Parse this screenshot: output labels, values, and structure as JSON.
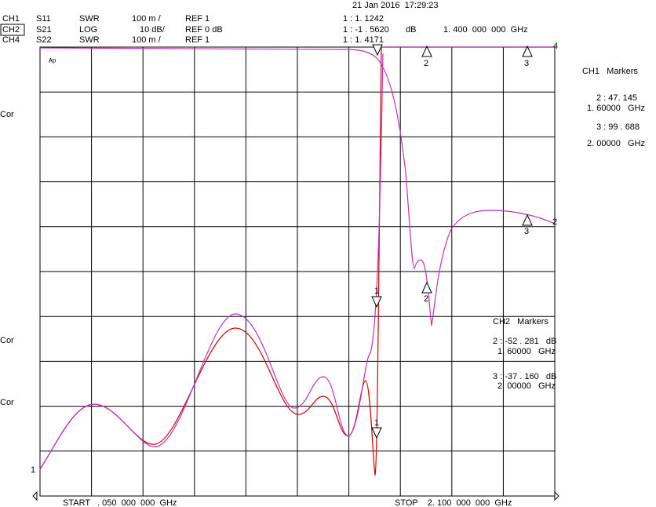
{
  "header": {
    "datetime": "21 Jan 2016  17:29:23",
    "channels": [
      {
        "channel": "CH1",
        "param": "S11",
        "format": "SWR",
        "scale": "100 m /",
        "ref": "REF 1",
        "marker": "1 : 1. 1242"
      },
      {
        "channel": "CH2",
        "param": "S21",
        "format": "LOG",
        "scale": "10 dB/",
        "ref": "REF 0 dB",
        "marker": "1 : -1 . 5620",
        "marker_unit": "dB",
        "marker_freq": "1. 400  000  000  GHz"
      },
      {
        "channel": "CH4",
        "param": "S22",
        "format": "SWR",
        "scale": "100 m /",
        "ref": "REF 1",
        "marker": "1 : 1. 4171"
      }
    ]
  },
  "ch1_markers": {
    "title": "CH1   Markers",
    "lines": [
      "2 : 47. 145",
      "1. 60000   GHz",
      "3 : 99 . 688",
      "2. 00000   GHz"
    ]
  },
  "ch2_markers": {
    "title": "CH2   Markers",
    "lines": [
      "2 : -52 . 281   dB",
      "1. 60000   GHz",
      "3 : -37 . 160   dB",
      "2. 00000   GHz"
    ]
  },
  "side_labels": [
    "Cor",
    "Cor",
    "Cor"
  ],
  "marker_labels": {
    "ref_left": "1",
    "ref_right_top": "4",
    "ref_right_mid": "2",
    "m1": "1",
    "m2": "2",
    "m3": "3"
  },
  "footer": {
    "start": "START   . 050  000  000  GHz",
    "stop": "STOP    2. 100  000  000  GHz"
  }
}
